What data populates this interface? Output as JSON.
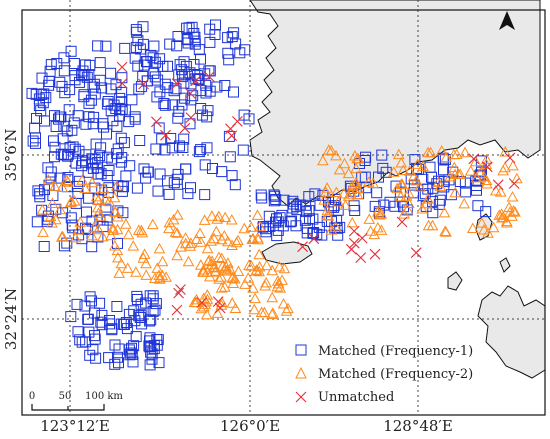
{
  "map": {
    "lon_labels": [
      "123°12′E",
      "126°0′E",
      "128°48′E"
    ],
    "lat_labels": [
      "35°6′N",
      "32°24′N"
    ],
    "north_arrow": "north-arrow-icon",
    "scale_bar": {
      "ticks": [
        "0",
        "50",
        "100 km"
      ]
    },
    "legend": [
      {
        "label": "Matched (Frequency-1)",
        "symbol": "square",
        "color": "#1f35d6"
      },
      {
        "label": "Matched (Frequency-2)",
        "symbol": "triangle",
        "color": "#ff8a1a"
      },
      {
        "label": "Unmatched",
        "symbol": "cross",
        "color": "#e3303a"
      }
    ],
    "colors": {
      "land": "#e9e9e9",
      "water": "#ffffff"
    }
  }
}
